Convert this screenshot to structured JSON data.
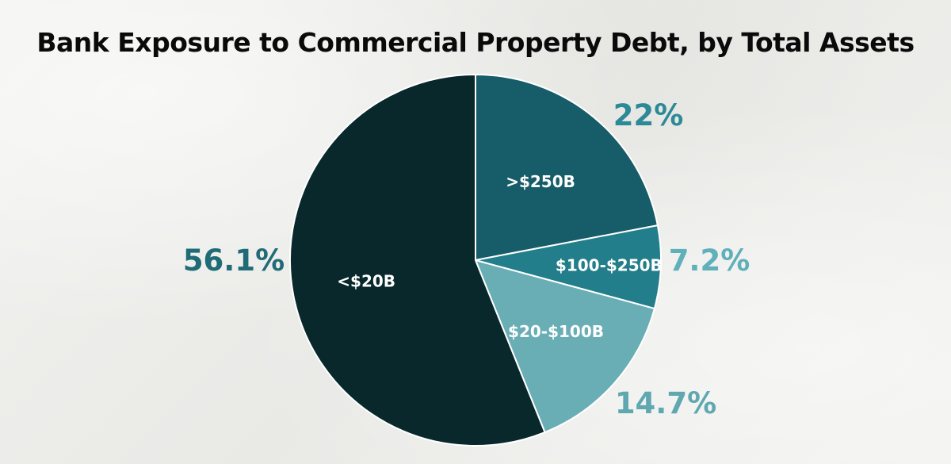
{
  "chart_data": {
    "type": "pie",
    "title": "Bank Exposure to Commercial Property Debt, by Total Assets",
    "slices": [
      {
        "label": ">$250B",
        "value": 22,
        "value_label": "22%",
        "color": "#165c69",
        "pct_color": "#2c8a97"
      },
      {
        "label": "$100-$250B",
        "value": 7.2,
        "value_label": "7.2%",
        "color": "#227e8a",
        "pct_color": "#5fb0b9"
      },
      {
        "label": "$20-$100B",
        "value": 14.7,
        "value_label": "14.7%",
        "color": "#6aaeb5",
        "pct_color": "#5fa8b0"
      },
      {
        "label": "<$20B",
        "value": 56.1,
        "value_label": "56.1%",
        "color": "#08282c",
        "pct_color": "#1f6c76"
      }
    ],
    "start_angle": "12 o'clock",
    "direction": "clockwise",
    "legend": "none",
    "slice_border_color": "#ffffff"
  }
}
